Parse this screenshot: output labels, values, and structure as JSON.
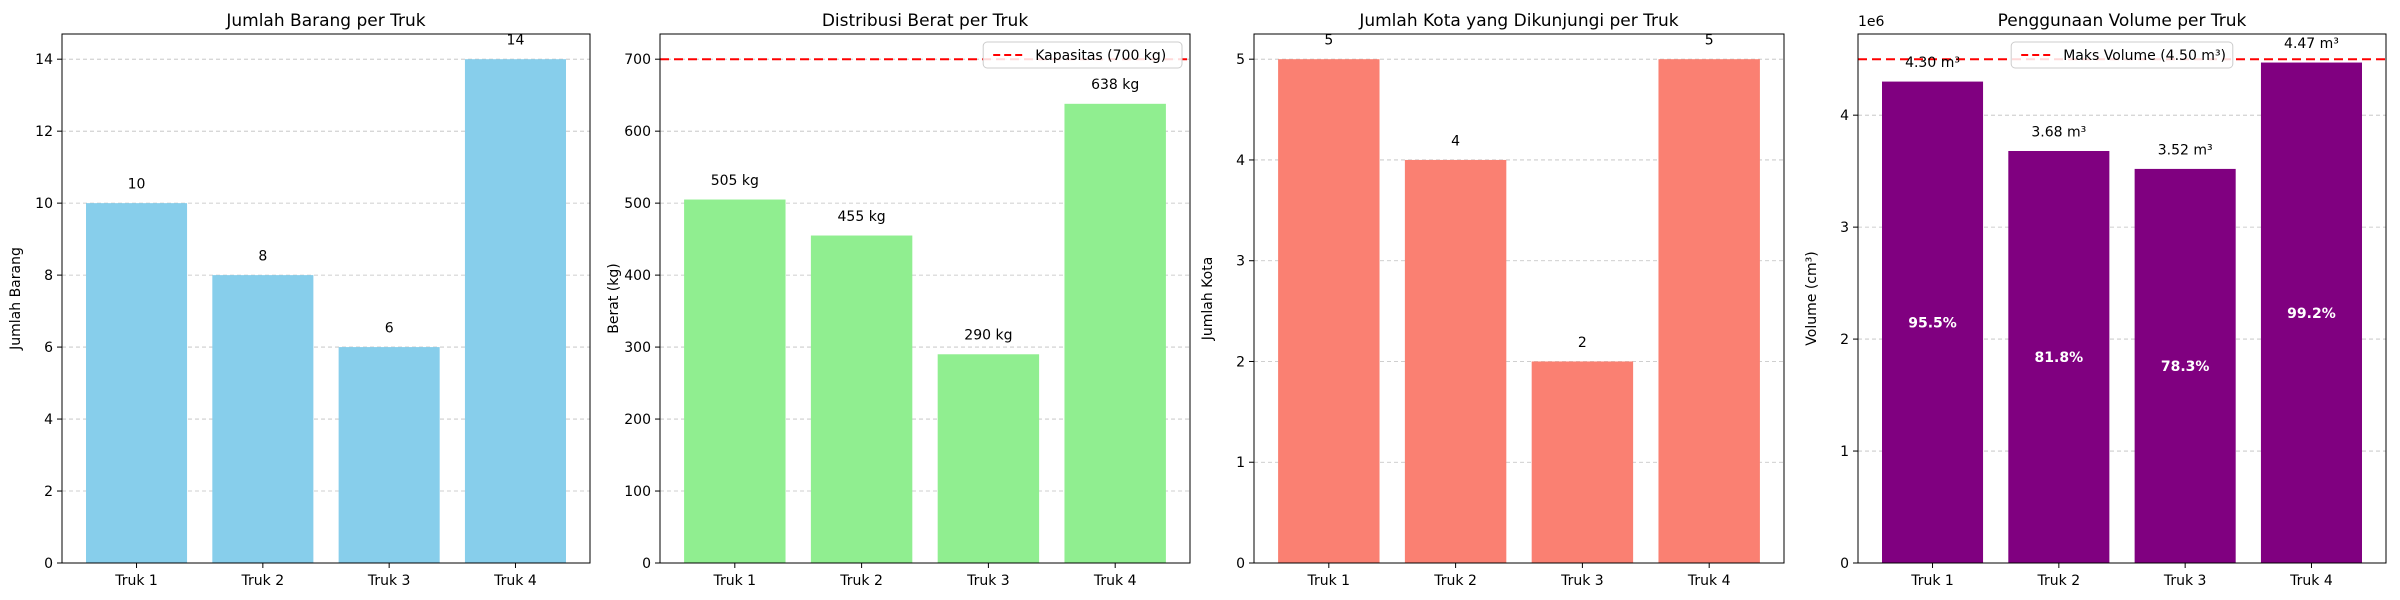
{
  "chart_data": [
    {
      "type": "bar",
      "title": "Jumlah Barang per Truk",
      "xlabel": "",
      "ylabel": "Jumlah Barang",
      "categories": [
        "Truk 1",
        "Truk 2",
        "Truk 3",
        "Truk 4"
      ],
      "values": [
        10,
        8,
        6,
        14
      ],
      "value_labels": [
        "10",
        "8",
        "6",
        "14"
      ],
      "ylim": [
        0,
        14.7
      ],
      "yticks": [
        0,
        2,
        4,
        6,
        8,
        10,
        12,
        14
      ],
      "ytick_labels": [
        "0",
        "2",
        "4",
        "6",
        "8",
        "10",
        "12",
        "14"
      ],
      "grid": "y dashed",
      "color": "#87CEEB"
    },
    {
      "type": "bar",
      "title": "Distribusi Berat per Truk",
      "xlabel": "",
      "ylabel": "Berat (kg)",
      "categories": [
        "Truk 1",
        "Truk 2",
        "Truk 3",
        "Truk 4"
      ],
      "values": [
        505,
        455,
        290,
        638
      ],
      "value_labels": [
        "505 kg",
        "455 kg",
        "290 kg",
        "638 kg"
      ],
      "ylim": [
        0,
        735
      ],
      "yticks": [
        0,
        100,
        200,
        300,
        400,
        500,
        600,
        700
      ],
      "ytick_labels": [
        "0",
        "100",
        "200",
        "300",
        "400",
        "500",
        "600",
        "700"
      ],
      "grid": "y dashed",
      "color": "#90EE90",
      "reference_line": {
        "value": 700,
        "label": "Kapasitas (700 kg)",
        "color": "#ff0000"
      },
      "legend_position": "upper right"
    },
    {
      "type": "bar",
      "title": "Jumlah Kota yang Dikunjungi per Truk",
      "xlabel": "",
      "ylabel": "Jumlah Kota",
      "categories": [
        "Truk 1",
        "Truk 2",
        "Truk 3",
        "Truk 4"
      ],
      "values": [
        5,
        4,
        2,
        5
      ],
      "value_labels": [
        "5",
        "4",
        "2",
        "5"
      ],
      "ylim": [
        0,
        5.25
      ],
      "yticks": [
        0,
        1,
        2,
        3,
        4,
        5
      ],
      "ytick_labels": [
        "0",
        "1",
        "2",
        "3",
        "4",
        "5"
      ],
      "grid": "y dashed",
      "color": "#FA8072"
    },
    {
      "type": "bar",
      "title": "Penggunaan Volume per Truk",
      "xlabel": "",
      "ylabel": "Volume (cm³)",
      "categories": [
        "Truk 1",
        "Truk 2",
        "Truk 3",
        "Truk 4"
      ],
      "values": [
        4300000,
        3680000,
        3520000,
        4470000
      ],
      "value_labels": [
        "4.30 m³",
        "3.68 m³",
        "3.52 m³",
        "4.47 m³"
      ],
      "inner_labels": [
        "95.5%",
        "81.8%",
        "78.3%",
        "99.2%"
      ],
      "ylim": [
        0,
        4725000
      ],
      "yticks": [
        0,
        1000000,
        2000000,
        3000000,
        4000000
      ],
      "ytick_labels": [
        "0",
        "1",
        "2",
        "3",
        "4"
      ],
      "axis_multiplier": "1e6",
      "grid": "y dashed",
      "color": "#800080",
      "reference_line": {
        "value": 4500000,
        "label": "Maks Volume (4.50 m³)",
        "color": "#ff0000"
      },
      "legend_position": "upper center"
    }
  ]
}
